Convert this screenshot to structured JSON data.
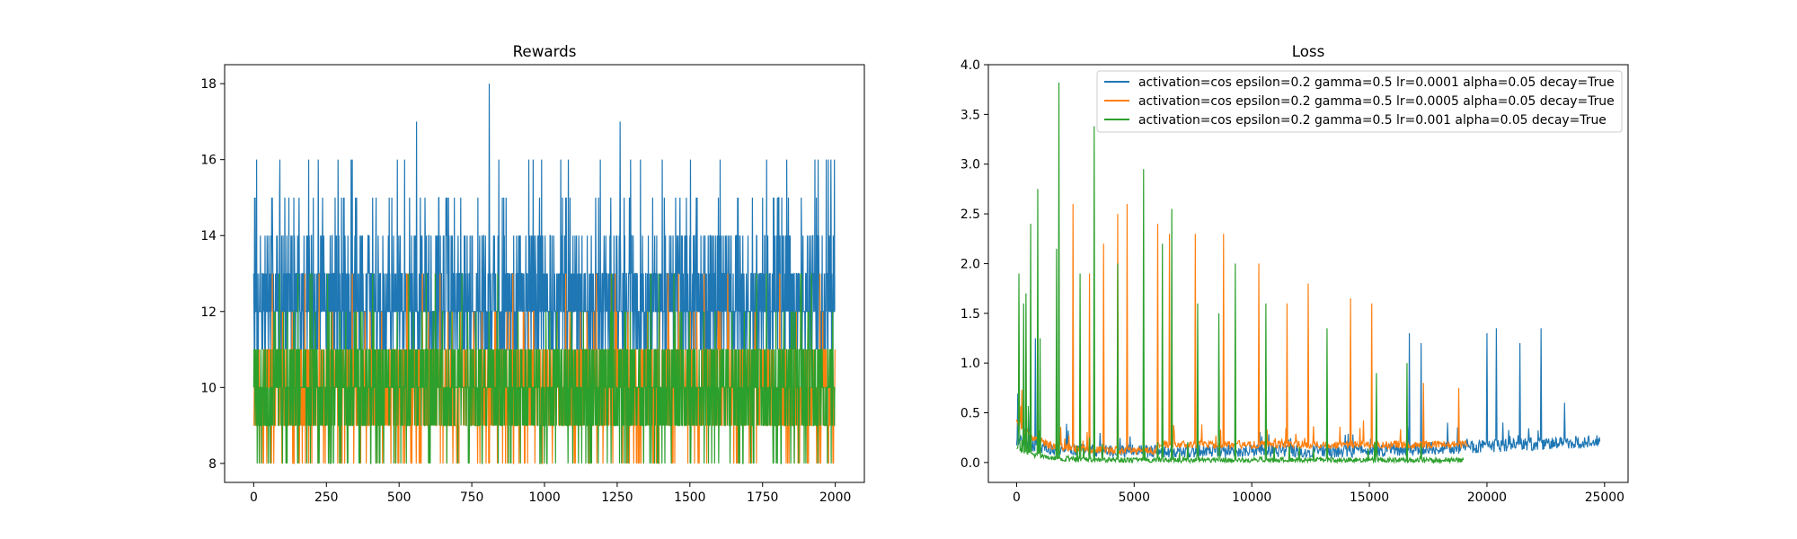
{
  "colors": {
    "c0": "#1f77b4",
    "c1": "#ff7f0e",
    "c2": "#2ca02c",
    "axis": "#000000",
    "legend_border": "#cccccc"
  },
  "chart_data": [
    {
      "type": "line",
      "title": "Rewards",
      "xlabel": "",
      "ylabel": "",
      "xlim": [
        -100,
        2100
      ],
      "ylim": [
        7.5,
        18.5
      ],
      "grid": false,
      "x_ticks": [
        "0",
        "250",
        "500",
        "750",
        "1000",
        "1250",
        "1500",
        "1750",
        "2000"
      ],
      "y_ticks": [
        "8",
        "10",
        "12",
        "14",
        "16",
        "18"
      ],
      "series": [
        {
          "color": "#1f77b4",
          "n_points": 2000,
          "baseline": 12,
          "typical_range": [
            11,
            14
          ],
          "max": 18,
          "max_at": 810,
          "min": 8
        },
        {
          "color": "#ff7f0e",
          "n_points": 2000,
          "baseline": 10,
          "typical_range": [
            9,
            11
          ],
          "max": 13,
          "min": 8
        },
        {
          "color": "#2ca02c",
          "n_points": 2000,
          "baseline": 10,
          "typical_range": [
            9,
            11
          ],
          "max": 13,
          "min": 8
        }
      ]
    },
    {
      "type": "line",
      "title": "Loss",
      "xlabel": "",
      "ylabel": "",
      "xlim": [
        -1200,
        26000
      ],
      "ylim": [
        -0.2,
        4.0
      ],
      "grid": false,
      "legend_position": "top-right",
      "x_ticks": [
        "0",
        "5000",
        "10000",
        "15000",
        "20000",
        "25000"
      ],
      "y_ticks": [
        "0.0",
        "0.5",
        "1.0",
        "1.5",
        "2.0",
        "2.5",
        "3.0",
        "3.5",
        "4.0"
      ],
      "series": [
        {
          "name": "activation=cos epsilon=0.2 gamma=0.5 lr=0.0001 alpha=0.05 decay=True",
          "color": "#1f77b4",
          "x_max": 24800,
          "floor_level": 0.2,
          "spikes": [
            [
              800,
              1.25
            ],
            [
              16700,
              1.3
            ],
            [
              17200,
              1.2
            ],
            [
              20000,
              1.3
            ],
            [
              20400,
              1.35
            ],
            [
              21400,
              1.2
            ],
            [
              22300,
              1.35
            ],
            [
              23300,
              0.6
            ]
          ]
        },
        {
          "name": "activation=cos epsilon=0.2 gamma=0.5 lr=0.0005 alpha=0.05 decay=True",
          "color": "#ff7f0e",
          "x_max": 19200,
          "floor_level": 0.15,
          "spikes": [
            [
              2400,
              2.6
            ],
            [
              3100,
              1.9
            ],
            [
              3700,
              2.2
            ],
            [
              4300,
              2.5
            ],
            [
              4700,
              2.6
            ],
            [
              6000,
              2.4
            ],
            [
              6500,
              2.3
            ],
            [
              7600,
              2.3
            ],
            [
              8800,
              2.3
            ],
            [
              10300,
              2.0
            ],
            [
              11500,
              1.6
            ],
            [
              12400,
              1.8
            ],
            [
              14200,
              1.65
            ],
            [
              15100,
              1.6
            ],
            [
              17300,
              0.8
            ],
            [
              18800,
              0.75
            ]
          ]
        },
        {
          "name": "activation=cos epsilon=0.2 gamma=0.5 lr=0.001 alpha=0.05 decay=True",
          "color": "#2ca02c",
          "x_max": 19000,
          "floor_level": 0.05,
          "spikes": [
            [
              100,
              1.9
            ],
            [
              300,
              1.6
            ],
            [
              400,
              1.7
            ],
            [
              600,
              2.4
            ],
            [
              900,
              2.75
            ],
            [
              1000,
              1.25
            ],
            [
              1700,
              2.15
            ],
            [
              1800,
              3.82
            ],
            [
              2700,
              1.9
            ],
            [
              3300,
              3.38
            ],
            [
              4300,
              2.0
            ],
            [
              5400,
              2.95
            ],
            [
              6200,
              2.2
            ],
            [
              6600,
              2.55
            ],
            [
              7700,
              1.6
            ],
            [
              8600,
              1.5
            ],
            [
              9300,
              2.0
            ],
            [
              10600,
              1.6
            ],
            [
              13200,
              1.35
            ],
            [
              15300,
              0.9
            ],
            [
              16600,
              1.0
            ]
          ]
        }
      ]
    }
  ]
}
